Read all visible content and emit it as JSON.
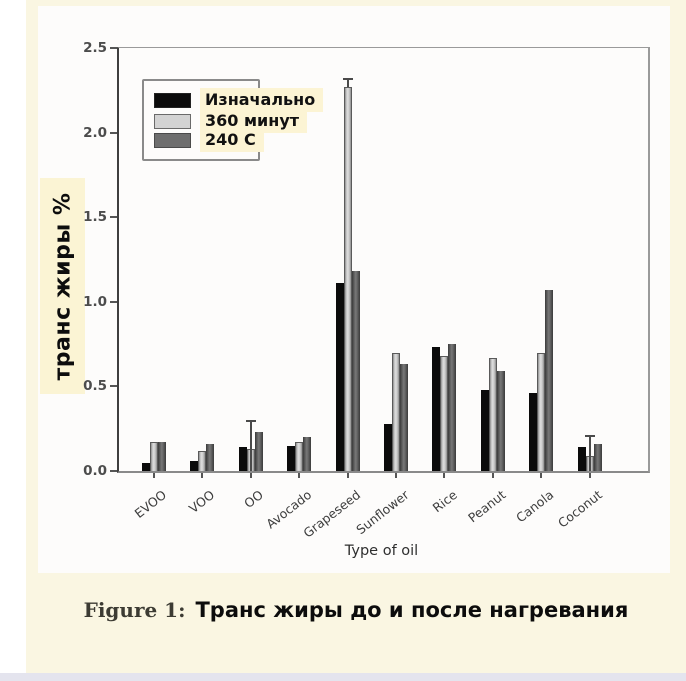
{
  "figure": {
    "caption_label": "Figure 1:",
    "caption_text": "Транс жиры до и после нагревания"
  },
  "chart_data": {
    "type": "bar",
    "title": "",
    "xlabel": "Type of oil",
    "ylabel": "транс жиры %",
    "ylim": [
      0,
      2.5
    ],
    "ytick_labels": [
      "0.0",
      "0.5",
      "1.0",
      "1.5",
      "2.0",
      "2.5"
    ],
    "ytick_values": [
      0,
      0.5,
      1.0,
      1.5,
      2.0,
      2.5
    ],
    "grid": false,
    "legend_position": "upper-left",
    "categories": [
      "EVOO",
      "VOO",
      "OO",
      "Avocado",
      "Grapeseed",
      "Sunflower",
      "Rice",
      "Peanut",
      "Canola",
      "Coconut"
    ],
    "series": [
      {
        "name": "Изначально",
        "color": "#0b0b0b",
        "values": [
          0.05,
          0.06,
          0.14,
          0.15,
          1.11,
          0.28,
          0.73,
          0.48,
          0.46,
          0.14
        ]
      },
      {
        "name": "360 минут",
        "color": "#d3d3d3",
        "values": [
          0.17,
          0.12,
          0.13,
          0.17,
          2.27,
          0.7,
          0.68,
          0.67,
          0.7,
          0.09
        ],
        "error_upper": [
          null,
          null,
          0.3,
          null,
          2.32,
          null,
          null,
          null,
          null,
          0.21
        ]
      },
      {
        "name": "240 C",
        "color": "#5a5a5a",
        "values": [
          0.17,
          0.16,
          0.23,
          0.2,
          1.18,
          0.63,
          0.75,
          0.59,
          1.07,
          0.16
        ]
      }
    ]
  },
  "colors": {
    "page_bg": "#ffffff",
    "panel_bg": "#faf6e2",
    "chart_bg": "#fdfcfb",
    "bottom_strip": "#e4e4ee",
    "text_highlight": "#fbf4d4",
    "bar_black": "#0b0b0b",
    "bar_light_gray": "#d3d3d3",
    "bar_dark_gray": "#5a5a5a",
    "axis": "#8a8a8a"
  }
}
